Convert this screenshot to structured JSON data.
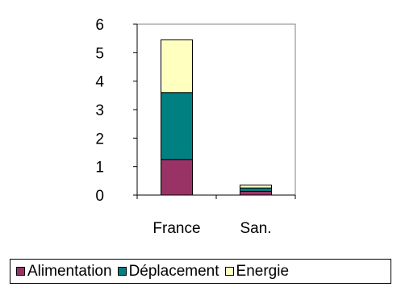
{
  "chart_data": {
    "type": "bar",
    "stacked": true,
    "categories": [
      "France",
      "San."
    ],
    "series": [
      {
        "name": "Alimentation",
        "values": [
          1.25,
          0.13
        ],
        "color": "#993366"
      },
      {
        "name": "Déplacement",
        "values": [
          2.35,
          0.12
        ],
        "color": "#008080"
      },
      {
        "name": "Energie",
        "values": [
          1.85,
          0.1
        ],
        "color": "#FFFFC0"
      }
    ],
    "ylim": [
      0,
      6
    ],
    "yticks": [
      0,
      1,
      2,
      3,
      4,
      5,
      6
    ],
    "grid": false,
    "legend": "bottom",
    "title": "",
    "xlabel": "",
    "ylabel": ""
  }
}
